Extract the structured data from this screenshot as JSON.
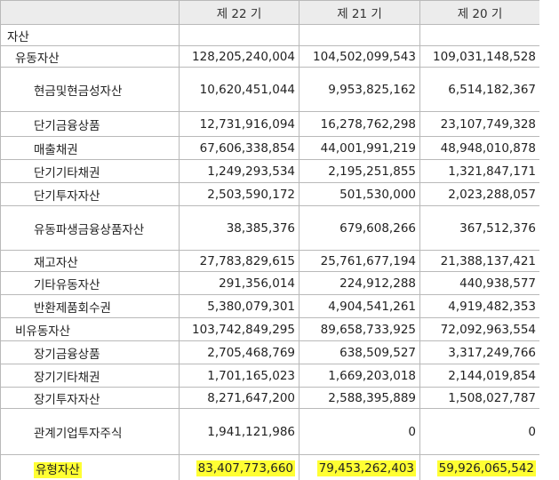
{
  "columns": [
    "",
    "제 22 기",
    "제 21 기",
    "제 20 기"
  ],
  "rows": [
    {
      "label": "자산",
      "level": 0,
      "h": 24,
      "values": [
        "",
        "",
        ""
      ]
    },
    {
      "label": "유동자산",
      "level": 1,
      "h": 24,
      "values": [
        "128,205,240,004",
        "104,502,099,543",
        "109,031,148,528"
      ]
    },
    {
      "label": "현금및현금성자산",
      "level": 2,
      "h": 50,
      "values": [
        "10,620,451,044",
        "9,953,825,162",
        "6,514,182,367"
      ]
    },
    {
      "label": "단기금융상품",
      "level": 2,
      "h": 28,
      "values": [
        "12,731,916,094",
        "16,278,762,298",
        "23,107,749,328"
      ]
    },
    {
      "label": "매출채권",
      "level": 2,
      "h": 26,
      "values": [
        "67,606,338,854",
        "44,001,991,219",
        "48,948,010,878"
      ]
    },
    {
      "label": "단기기타채권",
      "level": 2,
      "h": 26,
      "values": [
        "1,249,293,534",
        "2,195,251,855",
        "1,321,847,171"
      ]
    },
    {
      "label": "단기투자자산",
      "level": 2,
      "h": 26,
      "values": [
        "2,503,590,172",
        "501,530,000",
        "2,023,288,057"
      ]
    },
    {
      "label": "유동파생금융상품자산",
      "level": 2,
      "h": 50,
      "values": [
        "38,385,376",
        "679,608,266",
        "367,512,376"
      ]
    },
    {
      "label": "재고자산",
      "level": 2,
      "h": 24,
      "values": [
        "27,783,829,615",
        "25,761,677,194",
        "21,388,137,421"
      ]
    },
    {
      "label": "기타유동자산",
      "level": 2,
      "h": 26,
      "values": [
        "291,356,014",
        "224,912,288",
        "440,938,577"
      ]
    },
    {
      "label": "반환제품회수권",
      "level": 2,
      "h": 26,
      "values": [
        "5,380,079,301",
        "4,904,541,261",
        "4,919,482,353"
      ]
    },
    {
      "label": "비유동자산",
      "level": 1,
      "h": 26,
      "values": [
        "103,742,849,295",
        "89,658,733,925",
        "72,092,963,554"
      ]
    },
    {
      "label": "장기금융상품",
      "level": 2,
      "h": 26,
      "values": [
        "2,705,468,769",
        "638,509,527",
        "3,317,249,766"
      ]
    },
    {
      "label": "장기기타채권",
      "level": 2,
      "h": 26,
      "values": [
        "1,701,165,023",
        "1,669,203,018",
        "2,144,019,854"
      ]
    },
    {
      "label": "장기투자자산",
      "level": 2,
      "h": 24,
      "values": [
        "8,271,647,200",
        "2,588,395,889",
        "1,508,027,787"
      ]
    },
    {
      "label": "관계기업투자주식",
      "level": 2,
      "h": 52,
      "values": [
        "1,941,121,986",
        "0",
        "0"
      ]
    },
    {
      "label": "유형자산",
      "level": 2,
      "h": 30,
      "highlight": true,
      "values": [
        "83,407,773,660",
        "79,453,262,403",
        "59,926,065,542"
      ]
    }
  ],
  "highlight_color": "#ffff33"
}
